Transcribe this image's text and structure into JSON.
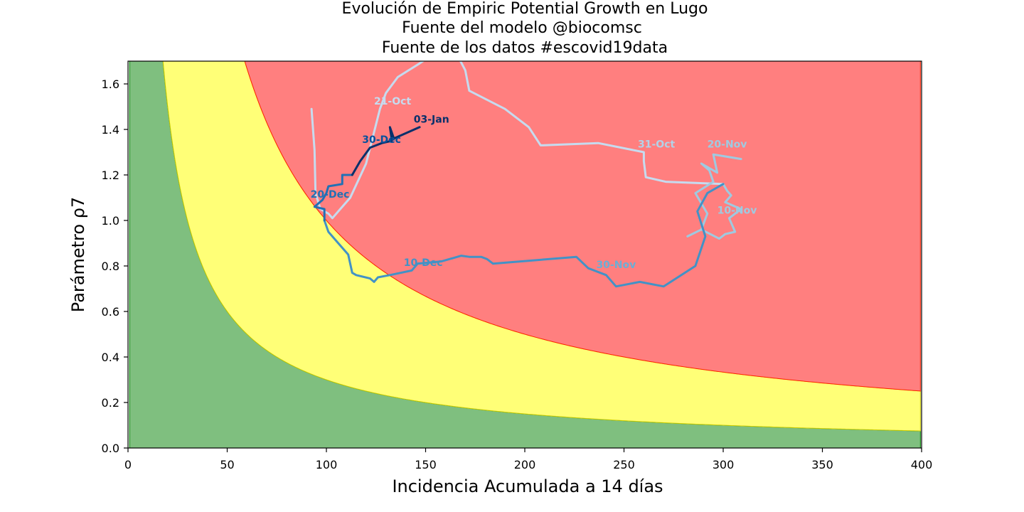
{
  "chart_data": {
    "type": "line",
    "title_lines": [
      "Evolución de Empiric Potential Growth en Lugo",
      "Fuente del modelo @biocomsc",
      "Fuente de los datos #escovid19data"
    ],
    "xlabel": "Incidencia Acumulada a 14 días",
    "ylabel": "Parámetro ρ7",
    "xlim": [
      0,
      400
    ],
    "ylim": [
      0,
      1.7
    ],
    "xticks": [
      0,
      50,
      100,
      150,
      200,
      250,
      300,
      350,
      400
    ],
    "yticks": [
      0.0,
      0.2,
      0.4,
      0.6,
      0.8,
      1.0,
      1.2,
      1.4,
      1.6
    ],
    "ytick_labels": [
      "0.0",
      "0.2",
      "0.4",
      "0.6",
      "0.8",
      "1.0",
      "1.2",
      "1.4",
      "1.6"
    ],
    "grid": false,
    "risk_zones": [
      {
        "name": "low",
        "color": "#7fbf7f",
        "edge_color": "#008000",
        "epg_max": 30
      },
      {
        "name": "medium",
        "color": "#ffff77",
        "edge_color": "#cccc00",
        "epg_max": 100
      },
      {
        "name": "high",
        "color": "#ff7f7f",
        "edge_color": "#ff2200",
        "epg_max": null
      }
    ],
    "series": [
      {
        "color": "#c6dbef",
        "points": [
          [
            92.5,
            1.49
          ],
          [
            94,
            1.31
          ],
          [
            94.5,
            1.12
          ],
          [
            97,
            1.05
          ],
          [
            101,
            1.03
          ],
          [
            103,
            1.01
          ],
          [
            107,
            1.05
          ],
          [
            112,
            1.1
          ],
          [
            120,
            1.25
          ],
          [
            127,
            1.49
          ],
          [
            130,
            1.56
          ],
          [
            136,
            1.63
          ],
          [
            147,
            1.69
          ],
          [
            152,
            1.72
          ],
          [
            160,
            1.74
          ],
          [
            167,
            1.71
          ],
          [
            170,
            1.66
          ],
          [
            172,
            1.57
          ],
          [
            190,
            1.49
          ],
          [
            202,
            1.41
          ],
          [
            208,
            1.33
          ],
          [
            237,
            1.34
          ],
          [
            260,
            1.3
          ],
          [
            260,
            1.26
          ],
          [
            261,
            1.19
          ],
          [
            271,
            1.17
          ],
          [
            300,
            1.16
          ]
        ]
      },
      {
        "color": "#9ecae1",
        "points": [
          [
            300,
            1.16
          ],
          [
            302,
            1.13
          ],
          [
            304,
            1.11
          ],
          [
            301,
            1.08
          ],
          [
            309,
            1.05
          ],
          [
            303,
            1.01
          ],
          [
            306,
            0.95
          ],
          [
            301,
            0.94
          ],
          [
            298,
            0.92
          ],
          [
            289,
            0.96
          ],
          [
            282,
            0.93
          ],
          [
            289,
            0.96
          ],
          [
            292,
            1.03
          ],
          [
            286,
            1.12
          ],
          [
            295,
            1.17
          ],
          [
            293,
            1.22
          ],
          [
            289,
            1.25
          ],
          [
            297,
            1.21
          ],
          [
            295,
            1.29
          ],
          [
            309,
            1.27
          ]
        ]
      },
      {
        "color": "#4292c6",
        "points": [
          [
            300,
            1.16
          ],
          [
            292,
            1.12
          ],
          [
            287,
            1.04
          ],
          [
            291,
            0.93
          ],
          [
            286,
            0.8
          ],
          [
            270,
            0.71
          ],
          [
            258,
            0.73
          ],
          [
            246,
            0.71
          ],
          [
            241,
            0.76
          ],
          [
            232,
            0.79
          ],
          [
            226,
            0.84
          ],
          [
            184,
            0.81
          ],
          [
            181,
            0.83
          ],
          [
            178,
            0.84
          ],
          [
            172,
            0.84
          ],
          [
            168,
            0.845
          ],
          [
            158,
            0.82
          ],
          [
            146,
            0.81
          ],
          [
            143,
            0.78
          ],
          [
            132,
            0.76
          ],
          [
            126,
            0.75
          ],
          [
            124,
            0.73
          ],
          [
            122,
            0.745
          ],
          [
            115,
            0.76
          ],
          [
            113,
            0.77
          ],
          [
            111,
            0.85
          ],
          [
            106,
            0.9
          ],
          [
            101,
            0.95
          ],
          [
            99,
            1.0
          ]
        ]
      },
      {
        "color": "#2171b5",
        "points": [
          [
            99,
            1.0
          ],
          [
            99,
            1.05
          ],
          [
            94,
            1.06
          ],
          [
            98,
            1.09
          ],
          [
            100,
            1.12
          ],
          [
            101,
            1.15
          ],
          [
            108,
            1.16
          ],
          [
            108,
            1.2
          ],
          [
            113,
            1.2
          ]
        ]
      },
      {
        "color": "#08306b",
        "points": [
          [
            113,
            1.2
          ],
          [
            117,
            1.26
          ],
          [
            122,
            1.32
          ],
          [
            128,
            1.34
          ],
          [
            133,
            1.35
          ],
          [
            132,
            1.41
          ],
          [
            134,
            1.36
          ],
          [
            147,
            1.41
          ]
        ]
      }
    ],
    "annotations": [
      {
        "text": "21-Oct",
        "x": 124,
        "y": 1.51,
        "color": "#c6dbef"
      },
      {
        "text": "31-Oct",
        "x": 257,
        "y": 1.32,
        "color": "#b2d2e8"
      },
      {
        "text": "20-Nov",
        "x": 292,
        "y": 1.32,
        "color": "#9ecae1"
      },
      {
        "text": "10-Nov",
        "x": 297,
        "y": 1.03,
        "color": "#9ecae1"
      },
      {
        "text": "30-Nov",
        "x": 236,
        "y": 0.79,
        "color": "#6baed6"
      },
      {
        "text": "10-Dec",
        "x": 139,
        "y": 0.8,
        "color": "#4292c6"
      },
      {
        "text": "20-Dec",
        "x": 92,
        "y": 1.1,
        "color": "#2171b5"
      },
      {
        "text": "30-Dec",
        "x": 118,
        "y": 1.34,
        "color": "#08519c"
      },
      {
        "text": "03-Jan",
        "x": 144,
        "y": 1.43,
        "color": "#08306b"
      }
    ]
  }
}
